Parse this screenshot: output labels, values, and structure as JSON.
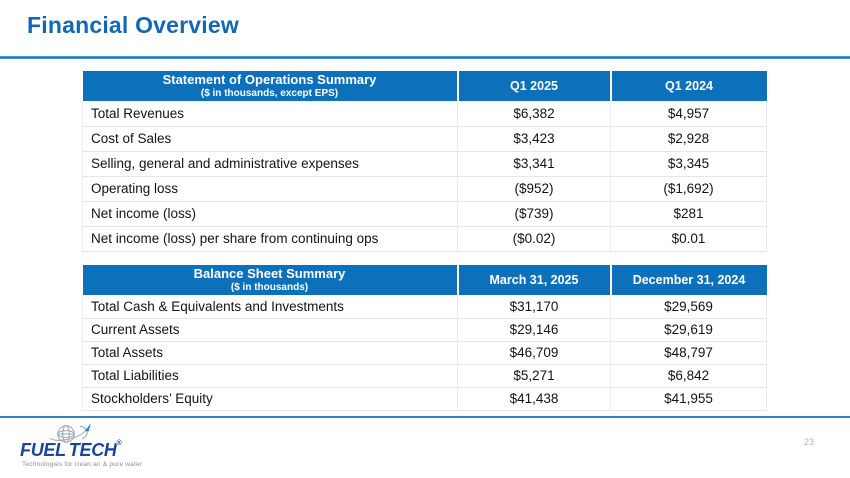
{
  "slide": {
    "title": "Financial Overview",
    "page_number": "23"
  },
  "colors": {
    "header_blue": "#0d70bb",
    "title_blue": "#1268b6",
    "rule_blue": "#2a84c8",
    "logo_navy": "#1d4596",
    "row_divider": "#e6e6e6"
  },
  "tables": [
    {
      "title": "Statement of Operations Summary",
      "subtitle": "($ in thousands, except EPS)",
      "columns": [
        "Q1 2025",
        "Q1 2024"
      ],
      "rows": [
        {
          "label": "Total Revenues",
          "values": [
            "$6,382",
            "$4,957"
          ]
        },
        {
          "label": "Cost of Sales",
          "values": [
            "$3,423",
            "$2,928"
          ]
        },
        {
          "label": "Selling, general and administrative expenses",
          "values": [
            "$3,341",
            "$3,345"
          ]
        },
        {
          "label": "Operating loss",
          "values": [
            "($952)",
            "($1,692)"
          ]
        },
        {
          "label": "Net income (loss)",
          "values": [
            "($739)",
            "$281"
          ]
        },
        {
          "label": "Net income (loss) per share from continuing ops",
          "values": [
            "($0.02)",
            "$0.01"
          ]
        }
      ]
    },
    {
      "title": "Balance Sheet Summary",
      "subtitle": "($ in thousands)",
      "columns": [
        "March 31, 2025",
        "December 31, 2024"
      ],
      "rows": [
        {
          "label": "Total Cash & Equivalents and Investments",
          "values": [
            "$31,170",
            "$29,569"
          ]
        },
        {
          "label": "Current Assets",
          "values": [
            "$29,146",
            "$29,619"
          ]
        },
        {
          "label": "Total Assets",
          "values": [
            "$46,709",
            "$48,797"
          ]
        },
        {
          "label": "Total Liabilities",
          "values": [
            "$5,271",
            "$6,842"
          ]
        },
        {
          "label": "Stockholders’ Equity",
          "values": [
            "$41,438",
            "$41,955"
          ]
        }
      ]
    }
  ],
  "logo": {
    "icon": "globe-orbit-icon",
    "text_fuel": "FUEL",
    "text_tech": "TECH",
    "trademark": "®",
    "tagline": "Technologies for clean air & pure water"
  }
}
